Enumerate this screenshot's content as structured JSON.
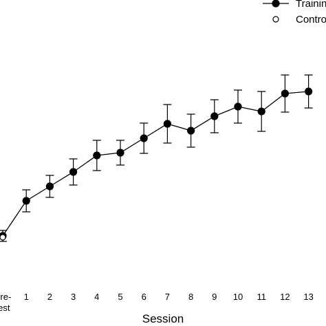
{
  "chart_data": {
    "type": "line",
    "x_label": "Session",
    "categories": [
      "Pre-test",
      "1",
      "2",
      "3",
      "4",
      "5",
      "6",
      "7",
      "8",
      "9",
      "10",
      "11",
      "12",
      "13"
    ],
    "ylim": [
      0,
      100
    ],
    "legend": "top-right",
    "series": [
      {
        "name": "Training",
        "color": "#000000",
        "marker": "filled",
        "values": [
          14.25,
          27,
          32.25,
          37.5,
          43.5,
          44.5,
          49.75,
          55,
          52.5,
          57.75,
          61.25,
          59.5,
          66,
          66.75
        ],
        "errors": [
          2,
          4,
          4,
          4.75,
          5.5,
          4.5,
          5.5,
          7,
          6,
          6,
          6,
          7.25,
          6.75,
          6
        ]
      },
      {
        "name": "Control",
        "color": "#000000",
        "marker": "open",
        "values": [
          13.75,
          null,
          null,
          null,
          null,
          null,
          null,
          null,
          null,
          null,
          null,
          null,
          null,
          null
        ]
      }
    ]
  }
}
